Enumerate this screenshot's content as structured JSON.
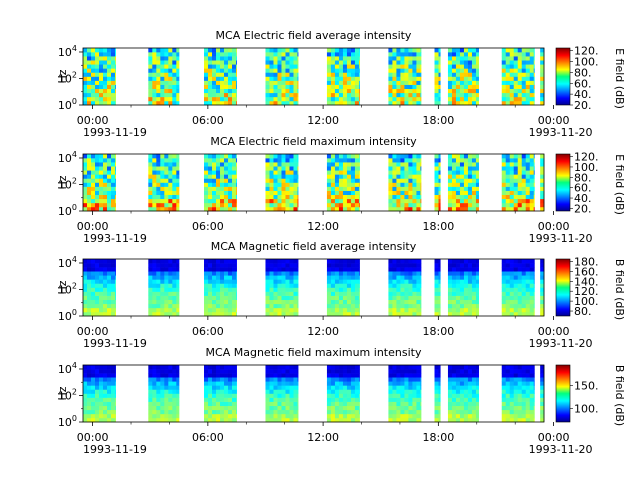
{
  "chart_data": [
    {
      "type": "heatmap",
      "title": "MCA  Electric field average intensity",
      "ylabel": "Hz",
      "y_scale": "log",
      "y_ticks": [
        {
          "b": "10",
          "e": "0"
        },
        {
          "b": "10",
          "e": "2"
        },
        {
          "b": "10",
          "e": "4"
        }
      ],
      "x_ticks": [
        "00:00",
        "06:00",
        "12:00",
        "18:00",
        "00:00"
      ],
      "x_dates": {
        "start": "1993-11-19",
        "end": "1993-11-20"
      },
      "colorbar": {
        "label": "E field (dB)",
        "ticks": [
          "20.",
          "40.",
          "60.",
          "80.",
          "100.",
          "120."
        ],
        "range": [
          20,
          125
        ]
      },
      "segments": [
        [
          0.0,
          1.7
        ],
        [
          3.4,
          5.0
        ],
        [
          6.3,
          8.0
        ],
        [
          9.5,
          11.2
        ],
        [
          12.7,
          14.4
        ],
        [
          15.9,
          17.6
        ],
        [
          18.3,
          18.6
        ],
        [
          19.0,
          20.6
        ],
        [
          21.8,
          23.5
        ],
        [
          23.8,
          24.0
        ]
      ]
    },
    {
      "type": "heatmap",
      "title": "MCA  Electric field maximum intensity",
      "ylabel": "Hz",
      "y_scale": "log",
      "y_ticks": [
        {
          "b": "10",
          "e": "0"
        },
        {
          "b": "10",
          "e": "2"
        },
        {
          "b": "10",
          "e": "4"
        }
      ],
      "x_ticks": [
        "00:00",
        "06:00",
        "12:00",
        "18:00",
        "00:00"
      ],
      "x_dates": {
        "start": "1993-11-19",
        "end": "1993-11-20"
      },
      "colorbar": {
        "label": "E field (dB)",
        "ticks": [
          "20.",
          "40.",
          "60.",
          "80.",
          "100.",
          "120."
        ],
        "range": [
          15,
          125
        ]
      },
      "segments": [
        [
          0.0,
          1.7
        ],
        [
          3.4,
          5.0
        ],
        [
          6.3,
          8.0
        ],
        [
          9.5,
          11.2
        ],
        [
          12.7,
          14.4
        ],
        [
          15.9,
          17.6
        ],
        [
          18.3,
          18.6
        ],
        [
          19.0,
          20.6
        ],
        [
          21.8,
          23.5
        ],
        [
          23.8,
          24.0
        ]
      ]
    },
    {
      "type": "heatmap",
      "title": "MCA  Magnetic field average intensity",
      "ylabel": "Hz",
      "y_scale": "log",
      "y_ticks": [
        {
          "b": "10",
          "e": "0"
        },
        {
          "b": "10",
          "e": "2"
        },
        {
          "b": "10",
          "e": "4"
        }
      ],
      "x_ticks": [
        "00:00",
        "06:00",
        "12:00",
        "18:00",
        "00:00"
      ],
      "x_dates": {
        "start": "1993-11-19",
        "end": "1993-11-20"
      },
      "colorbar": {
        "label": "B field (dB)",
        "ticks": [
          "80.",
          "100.",
          "120.",
          "140.",
          "160.",
          "180."
        ],
        "range": [
          70,
          185
        ]
      },
      "segments": [
        [
          0.0,
          1.7
        ],
        [
          3.4,
          5.0
        ],
        [
          6.3,
          8.0
        ],
        [
          9.5,
          11.2
        ],
        [
          12.7,
          14.4
        ],
        [
          15.9,
          17.6
        ],
        [
          18.3,
          18.6
        ],
        [
          19.0,
          20.6
        ],
        [
          21.8,
          23.5
        ],
        [
          23.8,
          24.0
        ]
      ]
    },
    {
      "type": "heatmap",
      "title": "MCA  Magnetic field maximum intensity",
      "ylabel": "Hz",
      "y_scale": "log",
      "y_ticks": [
        {
          "b": "10",
          "e": "0"
        },
        {
          "b": "10",
          "e": "2"
        },
        {
          "b": "10",
          "e": "4"
        }
      ],
      "x_ticks": [
        "00:00",
        "06:00",
        "12:00",
        "18:00",
        "00:00"
      ],
      "x_dates": {
        "start": "1993-11-19",
        "end": "1993-11-20"
      },
      "colorbar": {
        "label": "B field (dB)",
        "ticks": [
          "100.",
          "150."
        ],
        "range": [
          70,
          195
        ]
      },
      "segments": [
        [
          0.0,
          1.7
        ],
        [
          3.4,
          5.0
        ],
        [
          6.3,
          8.0
        ],
        [
          9.5,
          11.2
        ],
        [
          12.7,
          14.4
        ],
        [
          15.9,
          17.6
        ],
        [
          18.3,
          18.6
        ],
        [
          19.0,
          20.6
        ],
        [
          21.8,
          23.5
        ],
        [
          23.8,
          24.0
        ]
      ]
    }
  ]
}
